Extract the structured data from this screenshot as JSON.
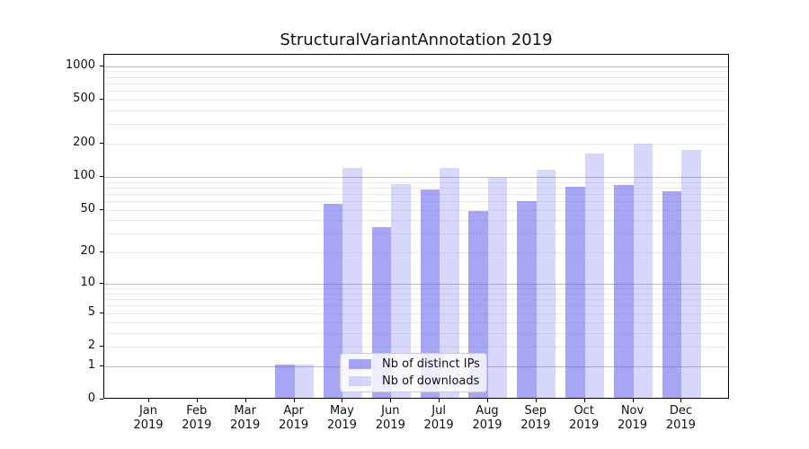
{
  "chart_data": {
    "type": "bar",
    "title": "StructuralVariantAnnotation 2019",
    "xlabel": "",
    "ylabel": "",
    "yscale": "log1p",
    "ylim": [
      0,
      1264
    ],
    "y_ticks": [
      0,
      1,
      2,
      5,
      10,
      20,
      50,
      100,
      200,
      500,
      1000
    ],
    "grid": {
      "major_values": [
        1,
        10,
        100,
        1000
      ],
      "minor_values": [
        2,
        3,
        4,
        5,
        6,
        7,
        8,
        9,
        20,
        30,
        40,
        50,
        60,
        70,
        80,
        90,
        200,
        300,
        400,
        500,
        600,
        700,
        800,
        900
      ],
      "major_color": "#bdbdbd",
      "minor_color": "#ebebeb"
    },
    "categories": [
      {
        "month": "Jan",
        "year": "2019"
      },
      {
        "month": "Feb",
        "year": "2019"
      },
      {
        "month": "Mar",
        "year": "2019"
      },
      {
        "month": "Apr",
        "year": "2019"
      },
      {
        "month": "May",
        "year": "2019"
      },
      {
        "month": "Jun",
        "year": "2019"
      },
      {
        "month": "Jul",
        "year": "2019"
      },
      {
        "month": "Aug",
        "year": "2019"
      },
      {
        "month": "Sep",
        "year": "2019"
      },
      {
        "month": "Oct",
        "year": "2019"
      },
      {
        "month": "Nov",
        "year": "2019"
      },
      {
        "month": "Dec",
        "year": "2019"
      }
    ],
    "series": [
      {
        "name": "Nb of distinct IPs",
        "color": "rgba(102,102,238,0.58)",
        "values": [
          0,
          0,
          0,
          1,
          55,
          33,
          74,
          47,
          58,
          78,
          81,
          71
        ]
      },
      {
        "name": "Nb of downloads",
        "color": "rgba(102,102,238,0.26)",
        "values": [
          0,
          0,
          0,
          1,
          115,
          83,
          117,
          94,
          112,
          157,
          194,
          168
        ]
      }
    ],
    "legend_position": "lower center",
    "colors": {
      "axis": "#000000",
      "text": "#111111",
      "background": "#ffffff"
    }
  }
}
